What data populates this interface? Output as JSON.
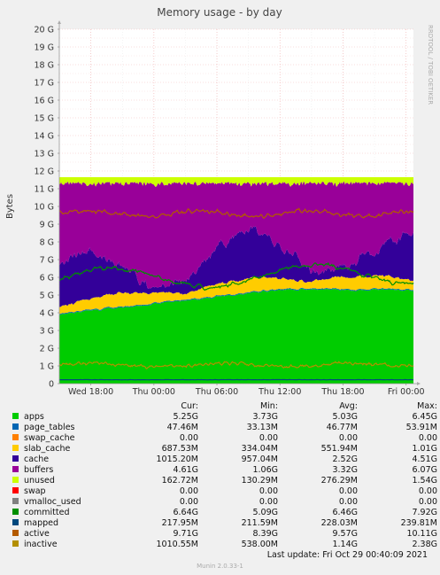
{
  "chart_data": {
    "type": "area",
    "title": "Memory usage - by day",
    "ylabel": "Bytes",
    "side_label": "RRDTOOL / TOBI OETIKER",
    "ylim": [
      0,
      20
    ],
    "yticks": [
      "0",
      "1 G",
      "2 G",
      "3 G",
      "4 G",
      "5 G",
      "6 G",
      "7 G",
      "8 G",
      "9 G",
      "10 G",
      "11 G",
      "12 G",
      "13 G",
      "14 G",
      "15 G",
      "16 G",
      "17 G",
      "18 G",
      "19 G",
      "20 G"
    ],
    "xticks": [
      "Wed 18:00",
      "Thu 00:00",
      "Thu 06:00",
      "Thu 12:00",
      "Thu 18:00",
      "Fri 00:00"
    ],
    "xtick_hours": [
      3,
      9,
      15,
      21,
      27,
      33
    ],
    "x_hours_span": 33.7,
    "stack_totals_gb": {
      "apps_start": 3.9,
      "apps_end": 5.3
    },
    "legend_headers": [
      "Cur:",
      "Min:",
      "Avg:",
      "Max:"
    ],
    "series": [
      {
        "name": "apps",
        "color": "#00cc00",
        "cur": "5.25G",
        "min": "3.73G",
        "avg": "5.03G",
        "max": "6.45G"
      },
      {
        "name": "page_tables",
        "color": "#0066b3",
        "cur": "47.46M",
        "min": "33.13M",
        "avg": "46.77M",
        "max": "53.91M"
      },
      {
        "name": "swap_cache",
        "color": "#ff8000",
        "cur": "0.00",
        "min": "0.00",
        "avg": "0.00",
        "max": "0.00"
      },
      {
        "name": "slab_cache",
        "color": "#ffcc00",
        "cur": "687.53M",
        "min": "334.04M",
        "avg": "551.94M",
        "max": "1.01G"
      },
      {
        "name": "cache",
        "color": "#330099",
        "cur": "1015.20M",
        "min": "957.04M",
        "avg": "2.52G",
        "max": "4.51G"
      },
      {
        "name": "buffers",
        "color": "#990099",
        "cur": "4.61G",
        "min": "1.06G",
        "avg": "3.32G",
        "max": "6.07G"
      },
      {
        "name": "unused",
        "color": "#ccff00",
        "cur": "162.72M",
        "min": "130.29M",
        "avg": "276.29M",
        "max": "1.54G"
      },
      {
        "name": "swap",
        "color": "#ff0000",
        "cur": "0.00",
        "min": "0.00",
        "avg": "0.00",
        "max": "0.00"
      },
      {
        "name": "vmalloc_used",
        "color": "#808080",
        "cur": "0.00",
        "min": "0.00",
        "avg": "0.00",
        "max": "0.00"
      },
      {
        "name": "committed",
        "color": "#008f00",
        "cur": "6.64G",
        "min": "5.09G",
        "avg": "6.46G",
        "max": "7.92G"
      },
      {
        "name": "mapped",
        "color": "#00487d",
        "cur": "217.95M",
        "min": "211.59M",
        "avg": "228.03M",
        "max": "239.81M"
      },
      {
        "name": "active",
        "color": "#b35a00",
        "cur": "9.71G",
        "min": "8.39G",
        "avg": "9.57G",
        "max": "10.11G"
      },
      {
        "name": "inactive",
        "color": "#b38f00",
        "cur": "1010.55M",
        "min": "538.00M",
        "avg": "1.14G",
        "max": "2.38G"
      }
    ]
  },
  "footer": {
    "last_update": "Last update:  Fri Oct 29 00:40:09 2021",
    "version": "Munin 2.0.33-1"
  }
}
